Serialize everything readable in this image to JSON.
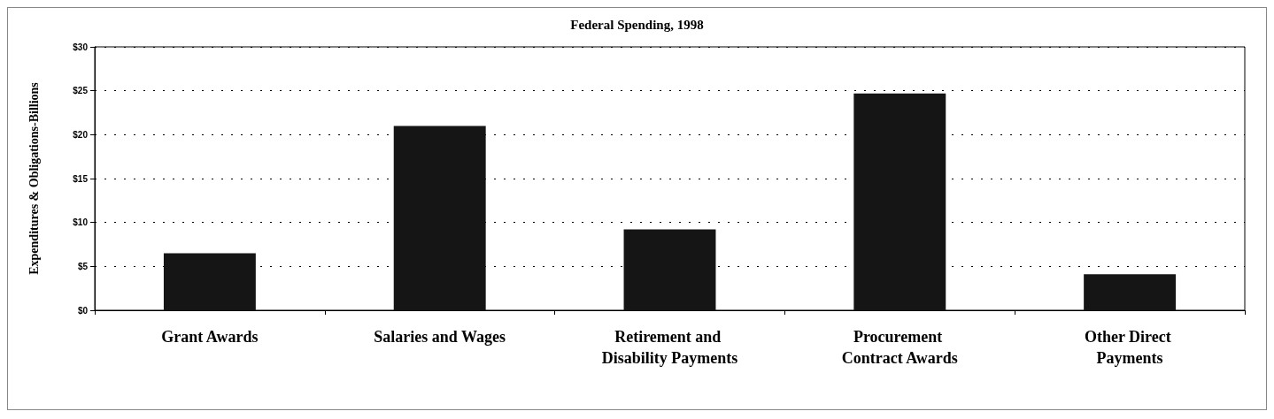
{
  "chart_data": {
    "type": "bar",
    "title": "Federal Spending, 1998",
    "ylabel": "Expenditures & Obligations-Billions",
    "categories": [
      "Grant Awards",
      "Salaries and Wages",
      "Retirement and Disability Payments",
      "Procurement Contract Awards",
      "Other Direct Payments"
    ],
    "values": [
      6.5,
      21,
      9.2,
      24.7,
      4.1
    ],
    "color": "#151515",
    "ylim": [
      0,
      30
    ],
    "yticks": [
      {
        "value": 0,
        "label": "$0"
      },
      {
        "value": 5,
        "label": "$5"
      },
      {
        "value": 10,
        "label": "$10"
      },
      {
        "value": 15,
        "label": "$15"
      },
      {
        "value": 20,
        "label": "$20"
      },
      {
        "value": 25,
        "label": "$25"
      },
      {
        "value": 30,
        "label": "$30"
      }
    ],
    "grid": "y"
  }
}
